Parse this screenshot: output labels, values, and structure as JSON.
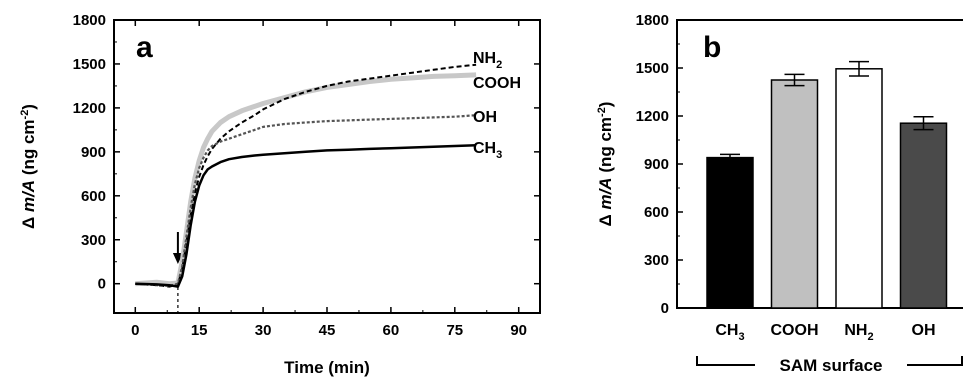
{
  "chart_data": [
    {
      "panel": "a",
      "type": "line",
      "xlabel": "Time (min)",
      "ylabel_prefix": "Δ ",
      "ylabel_var": "m/A",
      "ylabel_unit": " (ng cm",
      "ylabel_sup": "-2",
      "ylabel_close": ")",
      "xlim": [
        -5,
        95
      ],
      "ylim": [
        -200,
        1800
      ],
      "xticks": [
        "0",
        "15",
        "30",
        "45",
        "60",
        "75",
        "90"
      ],
      "yticks": [
        "0",
        "300",
        "600",
        "900",
        "1200",
        "1500",
        "1800"
      ],
      "xtick_values": [
        0,
        15,
        30,
        45,
        60,
        75,
        90
      ],
      "ytick_values": [
        0,
        300,
        600,
        900,
        1200,
        1500,
        1800
      ],
      "injection_time": 10,
      "series": [
        {
          "name": "COOH",
          "color": "#c8c8c8",
          "style": "solid-thick",
          "x": [
            0,
            5,
            8,
            10,
            11,
            12,
            13,
            14,
            15,
            16,
            17,
            18,
            20,
            22,
            25,
            28,
            30,
            35,
            40,
            45,
            50,
            55,
            60,
            65,
            70,
            75,
            80
          ],
          "y": [
            0,
            10,
            0,
            5,
            150,
            350,
            560,
            720,
            840,
            930,
            990,
            1040,
            1100,
            1140,
            1180,
            1210,
            1230,
            1270,
            1310,
            1340,
            1360,
            1380,
            1395,
            1405,
            1415,
            1420,
            1425
          ]
        },
        {
          "name": "NH2",
          "label_main": "NH",
          "label_sub": "2",
          "color": "#000000",
          "style": "dashed",
          "x": [
            0,
            5,
            8,
            10,
            11,
            12,
            13,
            14,
            15,
            16,
            17,
            18,
            20,
            22,
            25,
            28,
            30,
            35,
            40,
            45,
            50,
            55,
            60,
            65,
            70,
            75,
            80
          ],
          "y": [
            0,
            -10,
            -20,
            -5,
            100,
            280,
            470,
            620,
            730,
            810,
            870,
            920,
            990,
            1040,
            1100,
            1150,
            1190,
            1260,
            1310,
            1350,
            1380,
            1400,
            1420,
            1440,
            1460,
            1480,
            1495
          ]
        },
        {
          "name": "OH",
          "color": "#555555",
          "style": "dotted",
          "x": [
            0,
            5,
            8,
            10,
            11,
            12,
            13,
            14,
            15,
            16,
            17,
            18,
            20,
            22,
            25,
            28,
            30,
            35,
            40,
            45,
            50,
            55,
            60,
            65,
            70,
            75,
            80
          ],
          "y": [
            0,
            -10,
            -15,
            0,
            120,
            320,
            520,
            680,
            790,
            860,
            910,
            940,
            970,
            990,
            1020,
            1050,
            1070,
            1090,
            1100,
            1110,
            1115,
            1120,
            1125,
            1130,
            1135,
            1140,
            1150
          ]
        },
        {
          "name": "CH3",
          "label_main": "CH",
          "label_sub": "3",
          "color": "#000000",
          "style": "solid",
          "x": [
            0,
            5,
            8,
            10,
            11,
            12,
            13,
            14,
            15,
            16,
            17,
            18,
            20,
            22,
            25,
            28,
            30,
            35,
            40,
            45,
            50,
            55,
            60,
            65,
            70,
            75,
            80
          ],
          "y": [
            0,
            -5,
            -10,
            -20,
            50,
            200,
            400,
            560,
            670,
            740,
            780,
            800,
            830,
            850,
            865,
            875,
            880,
            890,
            900,
            910,
            915,
            920,
            925,
            930,
            935,
            940,
            945
          ]
        }
      ]
    },
    {
      "panel": "b",
      "type": "bar",
      "xlabel": "SAM surface",
      "ylabel_prefix": "Δ ",
      "ylabel_var": "m/A",
      "ylabel_unit": " (ng cm",
      "ylabel_sup": "-2",
      "ylabel_close": ")",
      "ylim": [
        0,
        1800
      ],
      "yticks": [
        "0",
        "300",
        "600",
        "900",
        "1200",
        "1500",
        "1800"
      ],
      "ytick_values": [
        0,
        300,
        600,
        900,
        1200,
        1500,
        1800
      ],
      "categories": [
        {
          "main": "CH",
          "sub": "3"
        },
        {
          "main": "COOH",
          "sub": ""
        },
        {
          "main": "NH",
          "sub": "2"
        },
        {
          "main": "OH",
          "sub": ""
        }
      ],
      "values": [
        940,
        1425,
        1495,
        1155
      ],
      "errors": [
        20,
        35,
        45,
        40
      ],
      "colors": [
        "#000000",
        "#c0c0c0",
        "#ffffff",
        "#4a4a4a"
      ]
    }
  ]
}
